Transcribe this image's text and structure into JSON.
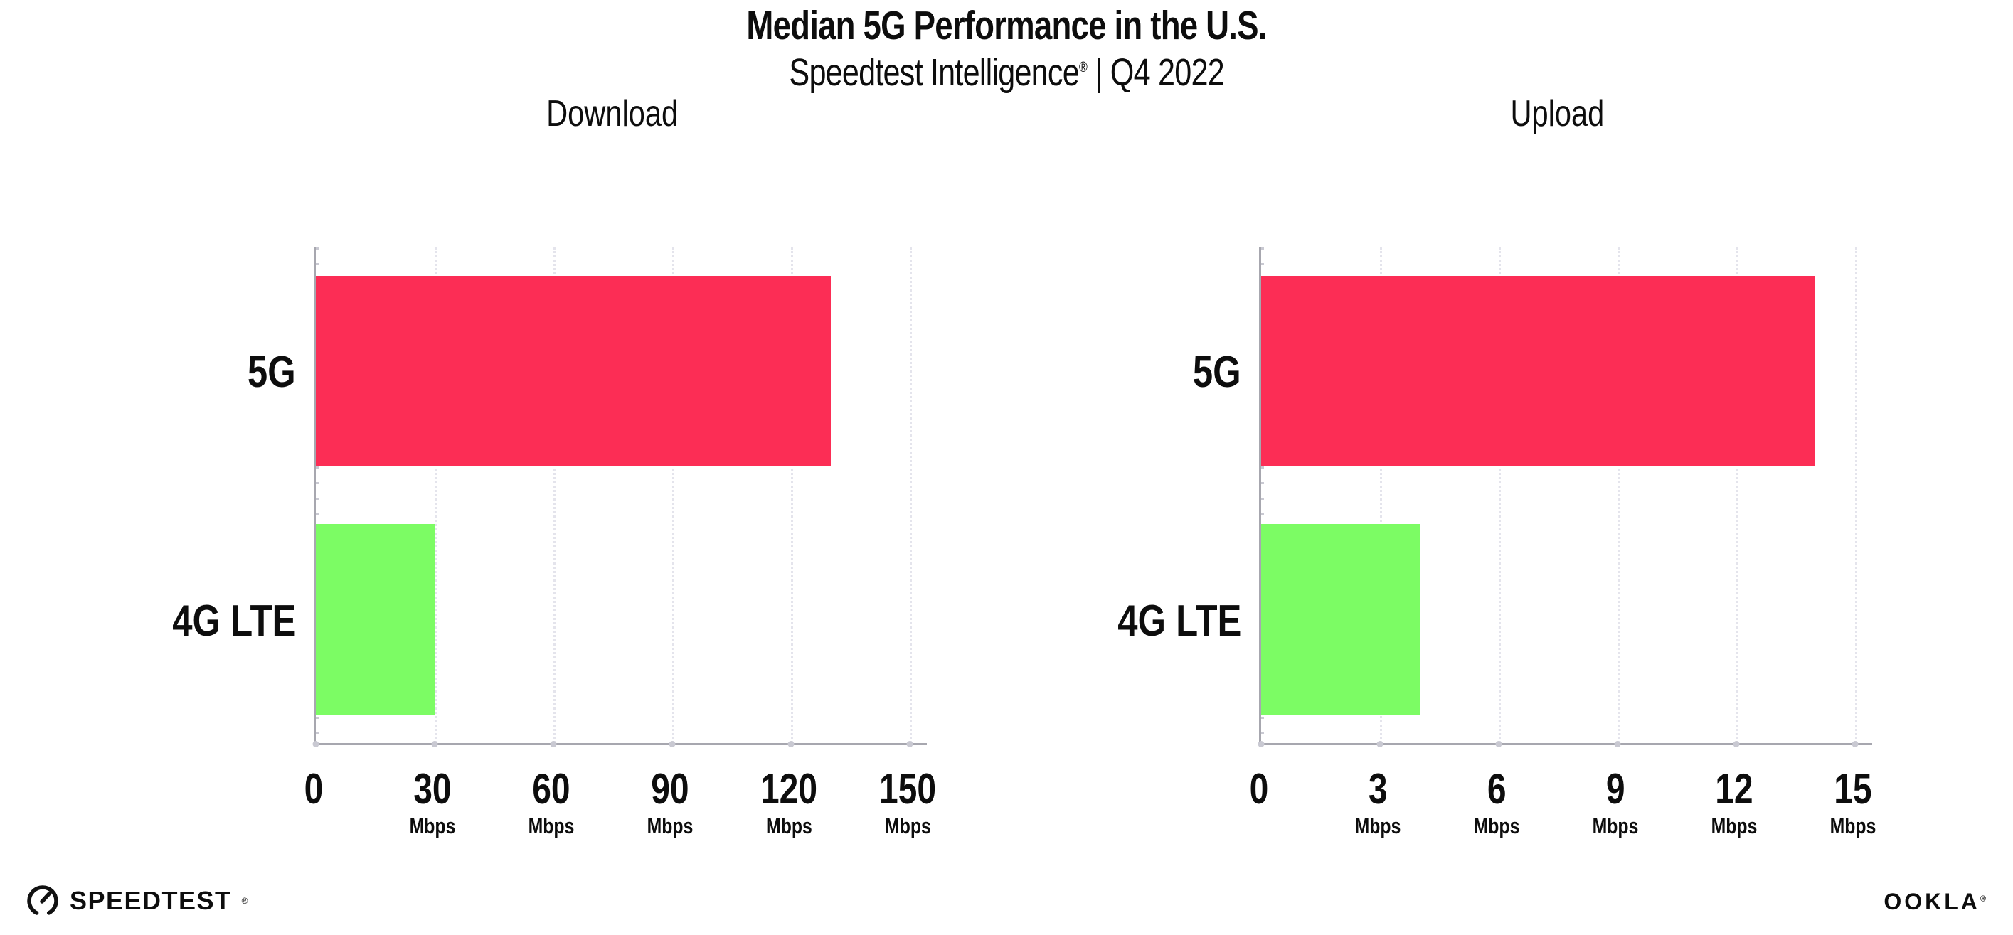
{
  "page": {
    "title": "Median 5G Performance in the U.S.",
    "subtitle_brand": "Speedtest Intelligence",
    "subtitle_reg": "®",
    "subtitle_divider": "|",
    "subtitle_period": "Q4 2022"
  },
  "colors": {
    "bar_5g": "#FC2D55",
    "bar_4g_lte": "#7CFC64",
    "axis": "#a7a7af",
    "gridline": "#e4e4ec",
    "text": "#0d0d0d"
  },
  "chart_data": [
    {
      "type": "bar",
      "orientation": "horizontal",
      "title": "Download",
      "categories": [
        "5G",
        "4G LTE"
      ],
      "values": [
        130,
        30
      ],
      "unit": "Mbps",
      "xlim": [
        0,
        150
      ],
      "ticks": [
        0,
        30,
        60,
        90,
        120,
        150
      ],
      "bar_colors": [
        "#FC2D55",
        "#7CFC64"
      ],
      "grid": "vertical-dotted",
      "legend": "none"
    },
    {
      "type": "bar",
      "orientation": "horizontal",
      "title": "Upload",
      "categories": [
        "5G",
        "4G LTE"
      ],
      "values": [
        14,
        4
      ],
      "unit": "Mbps",
      "xlim": [
        0,
        15
      ],
      "ticks": [
        0,
        3,
        6,
        9,
        12,
        15
      ],
      "bar_colors": [
        "#FC2D55",
        "#7CFC64"
      ],
      "grid": "vertical-dotted",
      "legend": "none"
    }
  ],
  "footer": {
    "speedtest_label": "SPEEDTEST",
    "speedtest_reg": "®",
    "ookla_label": "OOKLA",
    "ookla_reg": "®"
  }
}
